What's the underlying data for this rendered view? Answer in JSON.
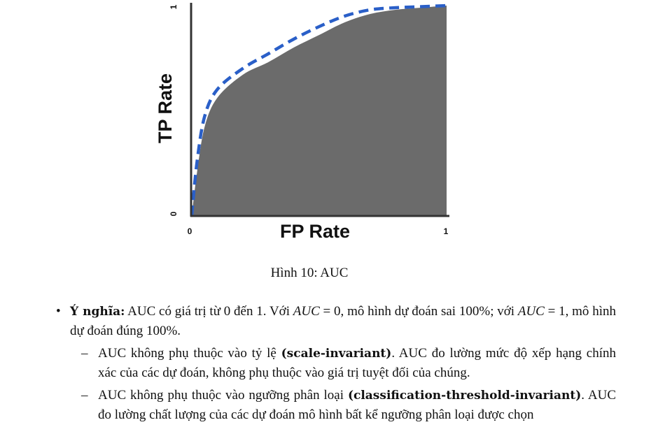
{
  "figure": {
    "chart_data": {
      "type": "area",
      "xlabel": "FP Rate",
      "ylabel": "TP Rate",
      "xlim": [
        0,
        1
      ],
      "ylim": [
        0,
        1
      ],
      "x_ticks": [
        "0",
        "1"
      ],
      "y_ticks": [
        "0",
        "1"
      ],
      "series": [
        {
          "style": "filled-area",
          "color": "#6b6b6b",
          "x": [
            0,
            0.02,
            0.05,
            0.1,
            0.2,
            0.3,
            0.4,
            0.5,
            0.6,
            0.7,
            0.8,
            0.9,
            1.0
          ],
          "y": [
            0,
            0.2,
            0.42,
            0.56,
            0.67,
            0.73,
            0.8,
            0.86,
            0.92,
            0.96,
            0.98,
            0.99,
            1.0
          ]
        },
        {
          "style": "dashed-line",
          "color": "#2a5fc8",
          "x": [
            0,
            0.02,
            0.05,
            0.1,
            0.2,
            0.3,
            0.4,
            0.5,
            0.6,
            0.7,
            0.8,
            0.9,
            1.0
          ],
          "y": [
            0,
            0.25,
            0.47,
            0.6,
            0.7,
            0.77,
            0.84,
            0.9,
            0.95,
            0.98,
            0.99,
            0.995,
            1.0
          ]
        }
      ]
    },
    "caption": "Hình 10: AUC"
  },
  "content": {
    "bullet_term": "Ý nghĩa:",
    "bullet_text_1": " AUC có giá trị từ 0 đến 1. Với ",
    "bullet_math_1": "AUC",
    "bullet_text_2": " = 0, mô hình dự đoán sai 100%; với ",
    "bullet_math_2": "AUC",
    "bullet_text_3": " = 1, mô hình dự đoán đúng 100%.",
    "sub_items": [
      {
        "dash": "–",
        "pre": "AUC không phụ thuộc vào tỷ lệ ",
        "bold": "(scale-invariant)",
        "post": ". AUC đo lường mức độ xếp hạng chính xác của các dự đoán, không phụ thuộc vào giá trị tuyệt đối của chúng."
      },
      {
        "dash": "–",
        "pre": "AUC không phụ thuộc vào ngưỡng phân loại ",
        "bold": "(classification-threshold-invariant)",
        "post": ". AUC đo lường chất lượng của các dự đoán mô hình bất kể ngưỡng phân loại được chọn"
      }
    ]
  }
}
